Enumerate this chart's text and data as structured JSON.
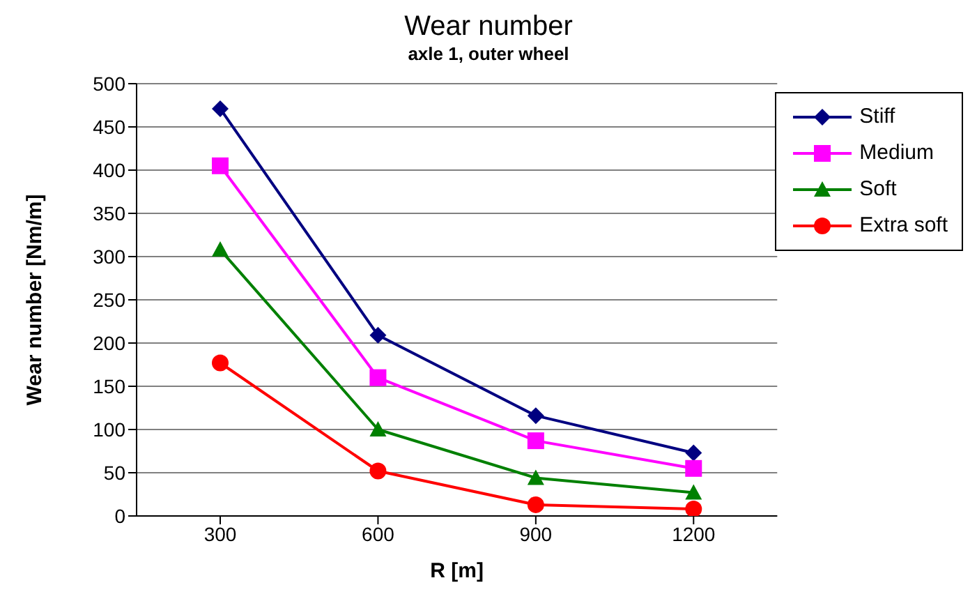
{
  "chart_data": {
    "type": "line",
    "title": "Wear number",
    "subtitle": "axle 1, outer wheel",
    "xlabel": "R [m]",
    "ylabel": "Wear number [Nm/m]",
    "categories": [
      "300",
      "600",
      "900",
      "1200"
    ],
    "series": [
      {
        "name": "Stiff",
        "color": "#000080",
        "marker": "diamond",
        "values": [
          471,
          209,
          116,
          73
        ]
      },
      {
        "name": "Medium",
        "color": "#ff00ff",
        "marker": "square",
        "values": [
          405,
          160,
          87,
          55
        ]
      },
      {
        "name": "Soft",
        "color": "#008000",
        "marker": "triangle",
        "values": [
          308,
          100,
          44,
          27
        ]
      },
      {
        "name": "Extra soft",
        "color": "#ff0000",
        "marker": "circle",
        "values": [
          177,
          52,
          13,
          8
        ]
      }
    ],
    "ylim": [
      0,
      500
    ],
    "yticks": [
      0,
      50,
      100,
      150,
      200,
      250,
      300,
      350,
      400,
      450,
      500
    ],
    "grid": "y",
    "legend": "top right"
  }
}
